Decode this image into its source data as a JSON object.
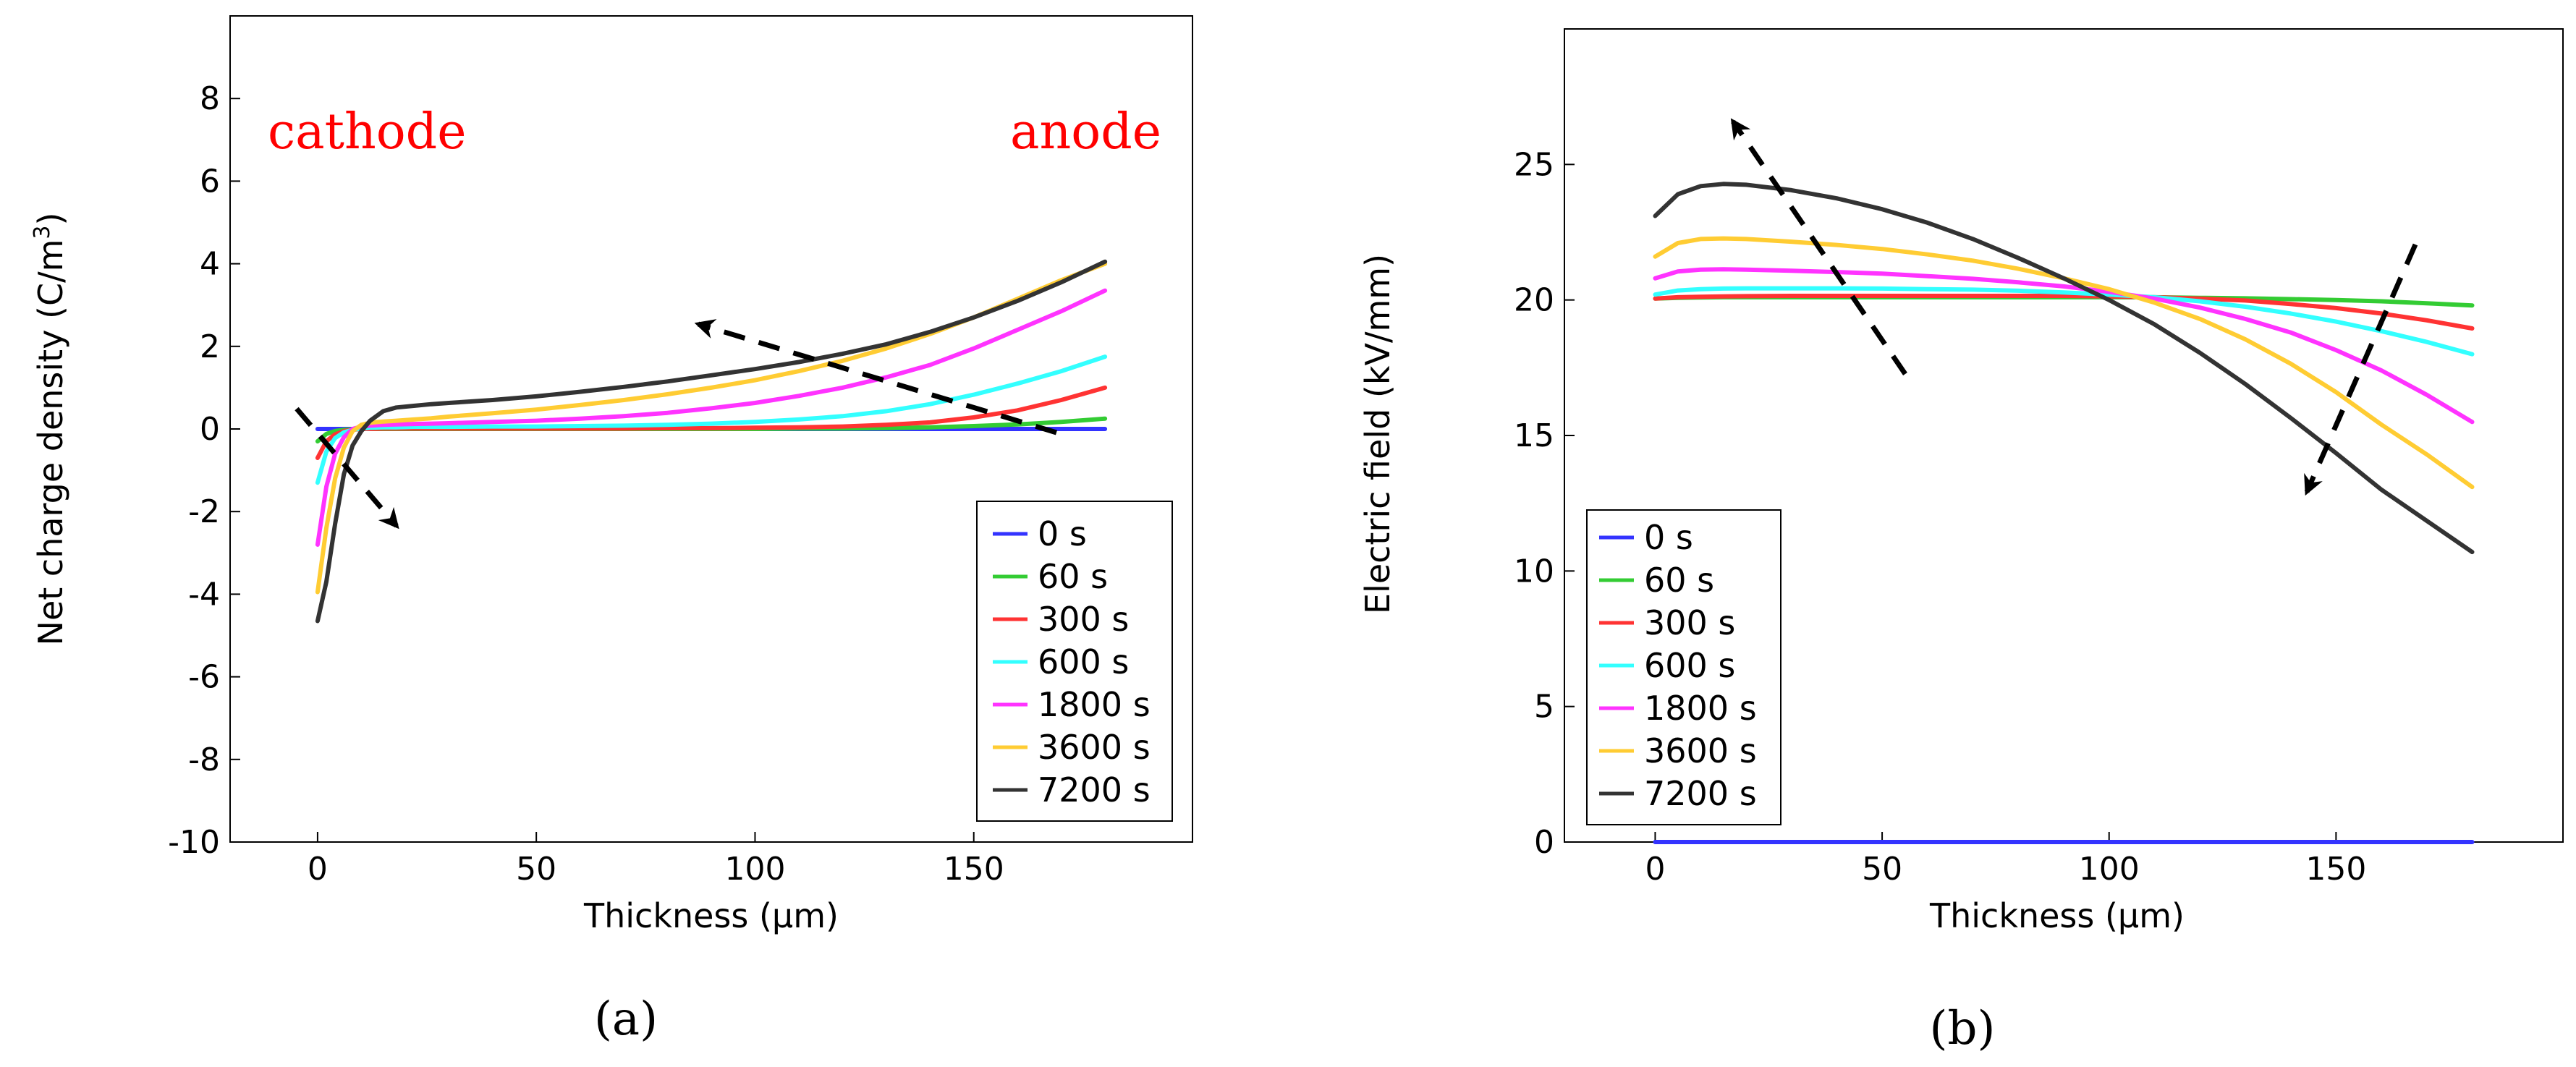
{
  "chart_data": [
    {
      "type": "line",
      "panel_label": "(a)",
      "xlabel": "Thickness (μm)",
      "ylabel": "Net charge density (C/m",
      "ylabel_sup": "3",
      "ylabel_close": ")",
      "xlim": [
        -20,
        200
      ],
      "ylim": [
        -10,
        10
      ],
      "xticks": [
        0,
        50,
        100,
        150
      ],
      "yticks": [
        -10,
        -8,
        -6,
        -4,
        -2,
        0,
        2,
        4,
        6,
        8
      ],
      "annotations": [
        "cathode",
        "anode"
      ],
      "legend_location": "lower-right",
      "x": [
        0,
        2,
        4,
        6,
        8,
        10,
        12,
        15,
        18,
        22,
        26,
        30,
        40,
        50,
        60,
        70,
        80,
        90,
        100,
        110,
        120,
        130,
        140,
        150,
        160,
        170,
        180
      ],
      "series": [
        {
          "name": "0 s",
          "color": "#3333ff",
          "values": [
            0,
            0,
            0,
            0,
            0,
            0,
            0,
            0,
            0,
            0,
            0,
            0,
            0,
            0,
            0,
            0,
            0,
            0,
            0,
            0,
            0,
            0,
            0,
            0,
            0,
            0,
            0
          ]
        },
        {
          "name": "60 s",
          "color": "#33cc33",
          "values": [
            -0.3,
            -0.12,
            -0.05,
            -0.02,
            -0.01,
            0,
            0,
            0,
            0,
            0,
            0,
            0,
            0,
            0,
            0,
            0,
            0,
            0,
            0,
            0.01,
            0.01,
            0.02,
            0.04,
            0.07,
            0.11,
            0.17,
            0.25
          ]
        },
        {
          "name": "300 s",
          "color": "#ff3333",
          "values": [
            -0.7,
            -0.3,
            -0.13,
            -0.05,
            -0.02,
            0,
            0,
            0.01,
            0.01,
            0.01,
            0.01,
            0.01,
            0.01,
            0.01,
            0.01,
            0.01,
            0.02,
            0.02,
            0.03,
            0.04,
            0.06,
            0.1,
            0.16,
            0.28,
            0.45,
            0.7,
            1.0
          ]
        },
        {
          "name": "600 s",
          "color": "#33ffff",
          "values": [
            -1.3,
            -0.55,
            -0.22,
            -0.08,
            -0.02,
            0.01,
            0.03,
            0.04,
            0.04,
            0.05,
            0.05,
            0.05,
            0.06,
            0.06,
            0.07,
            0.08,
            0.1,
            0.13,
            0.17,
            0.23,
            0.31,
            0.43,
            0.6,
            0.83,
            1.1,
            1.4,
            1.75
          ]
        },
        {
          "name": "1800 s",
          "color": "#ff33ff",
          "values": [
            -2.8,
            -1.4,
            -0.6,
            -0.2,
            0,
            0.06,
            0.08,
            0.1,
            0.11,
            0.12,
            0.13,
            0.14,
            0.17,
            0.2,
            0.25,
            0.31,
            0.39,
            0.5,
            0.63,
            0.8,
            1.0,
            1.25,
            1.55,
            1.95,
            2.4,
            2.85,
            3.35
          ]
        },
        {
          "name": "3600 s",
          "color": "#ffcc33",
          "values": [
            -3.95,
            -2.4,
            -1.2,
            -0.45,
            -0.05,
            0.1,
            0.15,
            0.18,
            0.2,
            0.23,
            0.26,
            0.3,
            0.38,
            0.47,
            0.58,
            0.7,
            0.84,
            1.0,
            1.18,
            1.4,
            1.65,
            1.95,
            2.3,
            2.7,
            3.15,
            3.6,
            4.0
          ]
        },
        {
          "name": "7200 s",
          "color": "#333333",
          "values": [
            -4.65,
            -3.7,
            -2.3,
            -1.1,
            -0.4,
            -0.05,
            0.2,
            0.43,
            0.52,
            0.56,
            0.6,
            0.63,
            0.7,
            0.79,
            0.9,
            1.02,
            1.15,
            1.3,
            1.45,
            1.62,
            1.82,
            2.05,
            2.35,
            2.7,
            3.1,
            3.55,
            4.05
          ]
        }
      ]
    },
    {
      "type": "line",
      "panel_label": "(b)",
      "xlabel": "Thickness (μm)",
      "ylabel": "Electric field (kV/mm)",
      "xlim": [
        -20,
        200
      ],
      "ylim": [
        0,
        30
      ],
      "xticks": [
        0,
        50,
        100,
        150
      ],
      "yticks": [
        0,
        5,
        10,
        15,
        20,
        25
      ],
      "legend_location": "lower-left",
      "x": [
        0,
        5,
        10,
        15,
        20,
        30,
        40,
        50,
        60,
        70,
        80,
        90,
        100,
        110,
        120,
        130,
        140,
        150,
        160,
        170,
        180
      ],
      "series": [
        {
          "name": "0 s",
          "color": "#3333ff",
          "values": [
            0,
            0,
            0,
            0,
            0,
            0,
            0,
            0,
            0,
            0,
            0,
            0,
            0,
            0,
            0,
            0,
            0,
            0,
            0,
            0,
            0
          ]
        },
        {
          "name": "60 s",
          "color": "#33cc33",
          "values": [
            20.05,
            20.08,
            20.09,
            20.1,
            20.1,
            20.1,
            20.1,
            20.1,
            20.1,
            20.1,
            20.1,
            20.1,
            20.1,
            20.1,
            20.08,
            20.06,
            20.03,
            20.0,
            19.95,
            19.88,
            19.8
          ]
        },
        {
          "name": "300 s",
          "color": "#ff3333",
          "values": [
            20.05,
            20.1,
            20.12,
            20.13,
            20.14,
            20.15,
            20.15,
            20.15,
            20.15,
            20.15,
            20.15,
            20.15,
            20.13,
            20.1,
            20.05,
            19.98,
            19.85,
            19.7,
            19.5,
            19.25,
            18.95
          ]
        },
        {
          "name": "600 s",
          "color": "#33ffff",
          "values": [
            20.2,
            20.35,
            20.4,
            20.42,
            20.43,
            20.43,
            20.43,
            20.42,
            20.4,
            20.38,
            20.34,
            20.28,
            20.2,
            20.1,
            19.95,
            19.75,
            19.5,
            19.2,
            18.85,
            18.45,
            18.0
          ]
        },
        {
          "name": "1800 s",
          "color": "#ff33ff",
          "values": [
            20.8,
            21.05,
            21.12,
            21.13,
            21.12,
            21.08,
            21.03,
            20.97,
            20.88,
            20.78,
            20.65,
            20.5,
            20.3,
            20.05,
            19.72,
            19.3,
            18.8,
            18.15,
            17.4,
            16.5,
            15.5
          ]
        },
        {
          "name": "3600 s",
          "color": "#ffcc33",
          "values": [
            21.6,
            22.1,
            22.25,
            22.27,
            22.25,
            22.15,
            22.03,
            21.88,
            21.68,
            21.45,
            21.15,
            20.8,
            20.4,
            19.9,
            19.3,
            18.55,
            17.65,
            16.6,
            15.4,
            14.3,
            13.1
          ]
        },
        {
          "name": "7200 s",
          "color": "#333333",
          "values": [
            23.1,
            23.9,
            24.2,
            24.28,
            24.25,
            24.05,
            23.75,
            23.35,
            22.85,
            22.25,
            21.55,
            20.8,
            20.0,
            19.1,
            18.05,
            16.9,
            15.65,
            14.35,
            13.0,
            11.85,
            10.7
          ]
        }
      ]
    }
  ]
}
